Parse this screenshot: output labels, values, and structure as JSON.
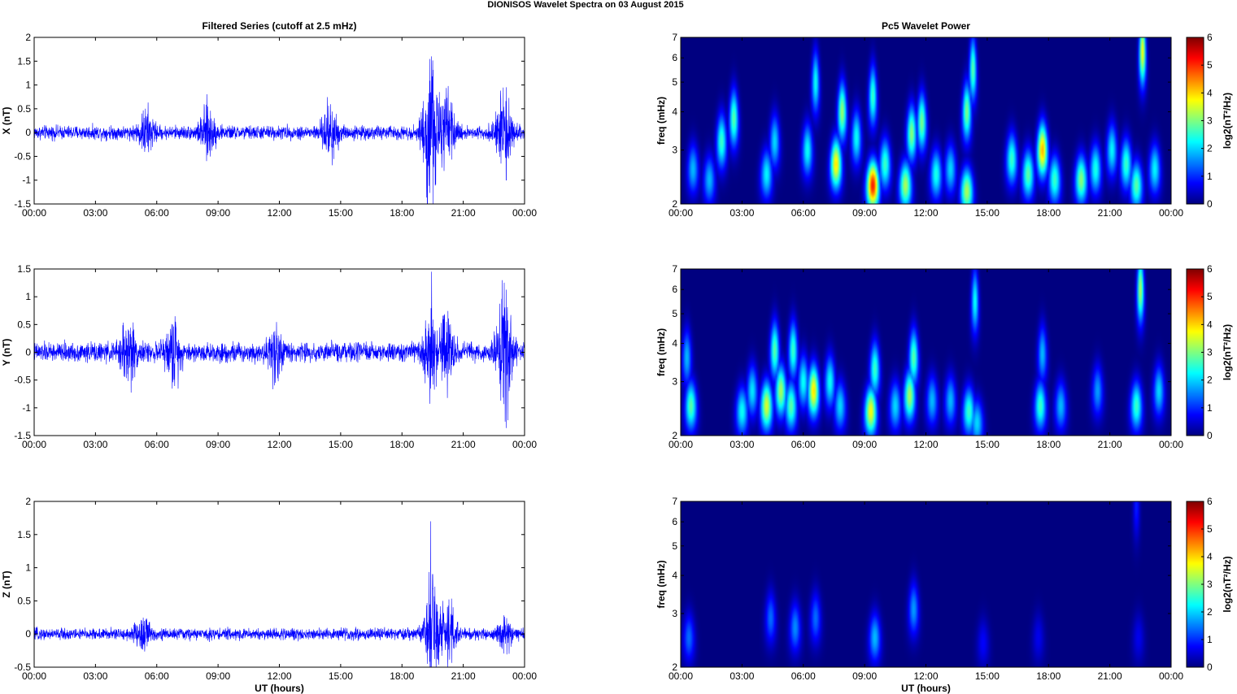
{
  "figure": {
    "title": "DIONISOS Wavelet Spectra on 03 August    2015"
  },
  "chart_data": [
    {
      "type": "line",
      "panel": "X",
      "title": "Filtered Series (cutoff at 2.5 mHz)",
      "xlabel": "",
      "ylabel": "X (nT)",
      "xlim": [
        0,
        24
      ],
      "ylim": [
        -1.5,
        2
      ],
      "xticks": [
        "00:00",
        "03:00",
        "06:00",
        "09:00",
        "12:00",
        "15:00",
        "18:00",
        "21:00",
        "00:00"
      ],
      "yticks": [
        "-1.5",
        "-1",
        "-0.5",
        "0",
        "0.5",
        "1",
        "1.5",
        "2"
      ],
      "series_color": "#0000ff",
      "noise": {
        "base_amplitude": 0.1,
        "bursts": [
          {
            "t": 5.5,
            "amp": 0.3
          },
          {
            "t": 8.5,
            "amp": 0.35
          },
          {
            "t": 14.5,
            "amp": 0.45
          },
          {
            "t": 19.4,
            "amp": 1.2
          },
          {
            "t": 20.2,
            "amp": 0.5
          },
          {
            "t": 23.0,
            "amp": 0.6
          }
        ],
        "spikes": [
          {
            "t": 19.45,
            "v": 1.6
          },
          {
            "t": 23.1,
            "v": -1.0
          },
          {
            "t": 20.1,
            "v": 0.7
          }
        ]
      }
    },
    {
      "type": "heatmap",
      "panel": "X",
      "title": "Pc5 Wavelet Power",
      "xlabel": "",
      "ylabel": "freq (mHz)",
      "xlim": [
        0,
        24
      ],
      "ylim": [
        2,
        7
      ],
      "yscale": "log",
      "xticks": [
        "00:00",
        "03:00",
        "06:00",
        "09:00",
        "12:00",
        "15:00",
        "18:00",
        "21:00",
        "00:00"
      ],
      "yticks": [
        "2",
        "3",
        "4",
        "5",
        "6",
        "7"
      ],
      "colorbar": {
        "label": "log2(nT²/Hz)",
        "range": [
          0,
          6
        ],
        "ticks": [
          "0",
          "1",
          "2",
          "3",
          "4",
          "5",
          "6"
        ]
      },
      "blobs": [
        {
          "t": 0.6,
          "f": 2.6,
          "p": 2.0
        },
        {
          "t": 1.4,
          "f": 2.4,
          "p": 2.0
        },
        {
          "t": 2.0,
          "f": 3.2,
          "p": 2.8
        },
        {
          "t": 2.6,
          "f": 3.8,
          "p": 3.0
        },
        {
          "t": 4.2,
          "f": 2.5,
          "p": 2.4
        },
        {
          "t": 4.6,
          "f": 3.2,
          "p": 2.2
        },
        {
          "t": 6.2,
          "f": 3.0,
          "p": 2.5
        },
        {
          "t": 6.6,
          "f": 5.0,
          "p": 2.5
        },
        {
          "t": 7.6,
          "f": 2.7,
          "p": 4.2
        },
        {
          "t": 7.9,
          "f": 4.0,
          "p": 3.4
        },
        {
          "t": 8.6,
          "f": 3.3,
          "p": 2.5
        },
        {
          "t": 9.4,
          "f": 2.3,
          "p": 5.5
        },
        {
          "t": 9.4,
          "f": 4.5,
          "p": 2.8
        },
        {
          "t": 10.0,
          "f": 2.7,
          "p": 2.8
        },
        {
          "t": 11.0,
          "f": 2.3,
          "p": 3.5
        },
        {
          "t": 11.3,
          "f": 3.4,
          "p": 3.3
        },
        {
          "t": 11.8,
          "f": 3.7,
          "p": 3.2
        },
        {
          "t": 12.5,
          "f": 2.5,
          "p": 2.6
        },
        {
          "t": 13.2,
          "f": 2.6,
          "p": 2.2
        },
        {
          "t": 14.0,
          "f": 2.2,
          "p": 3.5
        },
        {
          "t": 14.0,
          "f": 4.0,
          "p": 3.2
        },
        {
          "t": 14.3,
          "f": 5.5,
          "p": 3.0
        },
        {
          "t": 16.2,
          "f": 2.8,
          "p": 2.8
        },
        {
          "t": 17.0,
          "f": 2.5,
          "p": 3.0
        },
        {
          "t": 17.7,
          "f": 3.0,
          "p": 4.5
        },
        {
          "t": 18.3,
          "f": 2.4,
          "p": 2.8
        },
        {
          "t": 19.6,
          "f": 2.4,
          "p": 3.3
        },
        {
          "t": 20.3,
          "f": 2.6,
          "p": 2.6
        },
        {
          "t": 21.1,
          "f": 3.0,
          "p": 2.4
        },
        {
          "t": 21.8,
          "f": 2.7,
          "p": 2.8
        },
        {
          "t": 22.3,
          "f": 2.3,
          "p": 3.0
        },
        {
          "t": 22.6,
          "f": 6.3,
          "p": 4.0
        },
        {
          "t": 23.2,
          "f": 2.6,
          "p": 2.4
        }
      ]
    },
    {
      "type": "line",
      "panel": "Y",
      "title": "",
      "xlabel": "",
      "ylabel": "Y (nT)",
      "xlim": [
        0,
        24
      ],
      "ylim": [
        -1.5,
        1.5
      ],
      "xticks": [
        "00:00",
        "03:00",
        "06:00",
        "09:00",
        "12:00",
        "15:00",
        "18:00",
        "21:00",
        "00:00"
      ],
      "yticks": [
        "-1.5",
        "-1",
        "-0.5",
        "0",
        "0.5",
        "1",
        "1.5"
      ],
      "series_color": "#0000ff",
      "noise": {
        "base_amplitude": 0.12,
        "bursts": [
          {
            "t": 4.6,
            "amp": 0.4
          },
          {
            "t": 6.8,
            "amp": 0.35
          },
          {
            "t": 11.8,
            "amp": 0.3
          },
          {
            "t": 19.4,
            "amp": 0.5
          },
          {
            "t": 20.2,
            "amp": 0.4
          },
          {
            "t": 23.0,
            "amp": 0.8
          }
        ],
        "spikes": [
          {
            "t": 19.45,
            "v": 1.45
          },
          {
            "t": 22.9,
            "v": 1.3
          },
          {
            "t": 23.05,
            "v": -1.25
          }
        ]
      }
    },
    {
      "type": "heatmap",
      "panel": "Y",
      "title": "",
      "xlabel": "",
      "ylabel": "freq (mHz)",
      "xlim": [
        0,
        24
      ],
      "ylim": [
        2,
        7
      ],
      "yscale": "log",
      "xticks": [
        "00:00",
        "03:00",
        "06:00",
        "09:00",
        "12:00",
        "15:00",
        "18:00",
        "21:00",
        "00:00"
      ],
      "yticks": [
        "2",
        "3",
        "4",
        "5",
        "6",
        "7"
      ],
      "colorbar": {
        "label": "log2(nT²/Hz)",
        "range": [
          0,
          6
        ],
        "ticks": [
          "0",
          "1",
          "2",
          "3",
          "4",
          "5",
          "6"
        ]
      },
      "blobs": [
        {
          "t": 0.5,
          "f": 2.5,
          "p": 3.0
        },
        {
          "t": 0.3,
          "f": 3.6,
          "p": 2.0
        },
        {
          "t": 3.0,
          "f": 2.4,
          "p": 2.5
        },
        {
          "t": 3.5,
          "f": 2.8,
          "p": 2.3
        },
        {
          "t": 4.2,
          "f": 2.5,
          "p": 3.8
        },
        {
          "t": 4.6,
          "f": 3.8,
          "p": 3.0
        },
        {
          "t": 4.9,
          "f": 2.8,
          "p": 3.5
        },
        {
          "t": 5.4,
          "f": 2.5,
          "p": 3.0
        },
        {
          "t": 5.5,
          "f": 3.8,
          "p": 2.8
        },
        {
          "t": 6.0,
          "f": 3.0,
          "p": 2.5
        },
        {
          "t": 6.5,
          "f": 2.8,
          "p": 4.2
        },
        {
          "t": 7.3,
          "f": 3.0,
          "p": 2.5
        },
        {
          "t": 7.8,
          "f": 2.5,
          "p": 2.2
        },
        {
          "t": 9.3,
          "f": 2.4,
          "p": 4.0
        },
        {
          "t": 9.5,
          "f": 3.3,
          "p": 2.8
        },
        {
          "t": 10.5,
          "f": 2.5,
          "p": 2.2
        },
        {
          "t": 11.2,
          "f": 2.7,
          "p": 3.5
        },
        {
          "t": 11.4,
          "f": 3.6,
          "p": 3.0
        },
        {
          "t": 12.3,
          "f": 2.6,
          "p": 2.0
        },
        {
          "t": 13.2,
          "f": 2.6,
          "p": 2.0
        },
        {
          "t": 14.1,
          "f": 2.4,
          "p": 2.8
        },
        {
          "t": 14.4,
          "f": 5.5,
          "p": 2.5
        },
        {
          "t": 14.5,
          "f": 2.2,
          "p": 2.2
        },
        {
          "t": 17.6,
          "f": 2.5,
          "p": 2.8
        },
        {
          "t": 17.7,
          "f": 3.7,
          "p": 2.0
        },
        {
          "t": 18.6,
          "f": 2.5,
          "p": 2.0
        },
        {
          "t": 20.4,
          "f": 2.8,
          "p": 1.8
        },
        {
          "t": 22.3,
          "f": 2.5,
          "p": 2.8
        },
        {
          "t": 22.5,
          "f": 6.0,
          "p": 3.5
        },
        {
          "t": 23.4,
          "f": 2.8,
          "p": 2.2
        }
      ]
    },
    {
      "type": "line",
      "panel": "Z",
      "title": "",
      "xlabel": "UT (hours)",
      "ylabel": "Z (nT)",
      "xlim": [
        0,
        24
      ],
      "ylim": [
        -0.5,
        2
      ],
      "xticks": [
        "00:00",
        "03:00",
        "06:00",
        "09:00",
        "12:00",
        "15:00",
        "18:00",
        "21:00",
        "00:00"
      ],
      "yticks": [
        "-0.5",
        "0",
        "0.5",
        "1",
        "1.5",
        "2"
      ],
      "series_color": "#0000ff",
      "noise": {
        "base_amplitude": 0.06,
        "bursts": [
          {
            "t": 5.3,
            "amp": 0.2
          },
          {
            "t": 19.5,
            "amp": 0.6
          },
          {
            "t": 20.3,
            "amp": 0.35
          },
          {
            "t": 23.0,
            "amp": 0.15
          }
        ],
        "spikes": [
          {
            "t": 19.4,
            "v": 1.7
          },
          {
            "t": 19.5,
            "v": 0.9
          },
          {
            "t": 20.0,
            "v": 0.5
          }
        ]
      }
    },
    {
      "type": "heatmap",
      "panel": "Z",
      "title": "",
      "xlabel": "UT (hours)",
      "ylabel": "freq (mHz)",
      "xlim": [
        0,
        24
      ],
      "ylim": [
        2,
        7
      ],
      "yscale": "log",
      "xticks": [
        "00:00",
        "03:00",
        "06:00",
        "09:00",
        "12:00",
        "15:00",
        "18:00",
        "21:00",
        "00:00"
      ],
      "yticks": [
        "2",
        "3",
        "4",
        "5",
        "6",
        "7"
      ],
      "colorbar": {
        "label": "log2(nT²/Hz)",
        "range": [
          0,
          6
        ],
        "ticks": [
          "0",
          "1",
          "2",
          "3",
          "4",
          "5",
          "6"
        ]
      },
      "blobs": [
        {
          "t": 0.4,
          "f": 2.5,
          "p": 1.5
        },
        {
          "t": 4.4,
          "f": 2.9,
          "p": 1.5
        },
        {
          "t": 5.6,
          "f": 2.7,
          "p": 1.7
        },
        {
          "t": 6.6,
          "f": 2.9,
          "p": 1.5
        },
        {
          "t": 9.5,
          "f": 2.5,
          "p": 2.0
        },
        {
          "t": 11.4,
          "f": 3.1,
          "p": 1.8
        },
        {
          "t": 14.8,
          "f": 2.4,
          "p": 0.8
        },
        {
          "t": 17.5,
          "f": 2.5,
          "p": 0.7
        },
        {
          "t": 22.4,
          "f": 2.5,
          "p": 0.7
        },
        {
          "t": 22.3,
          "f": 6.8,
          "p": 1.0
        }
      ]
    }
  ]
}
